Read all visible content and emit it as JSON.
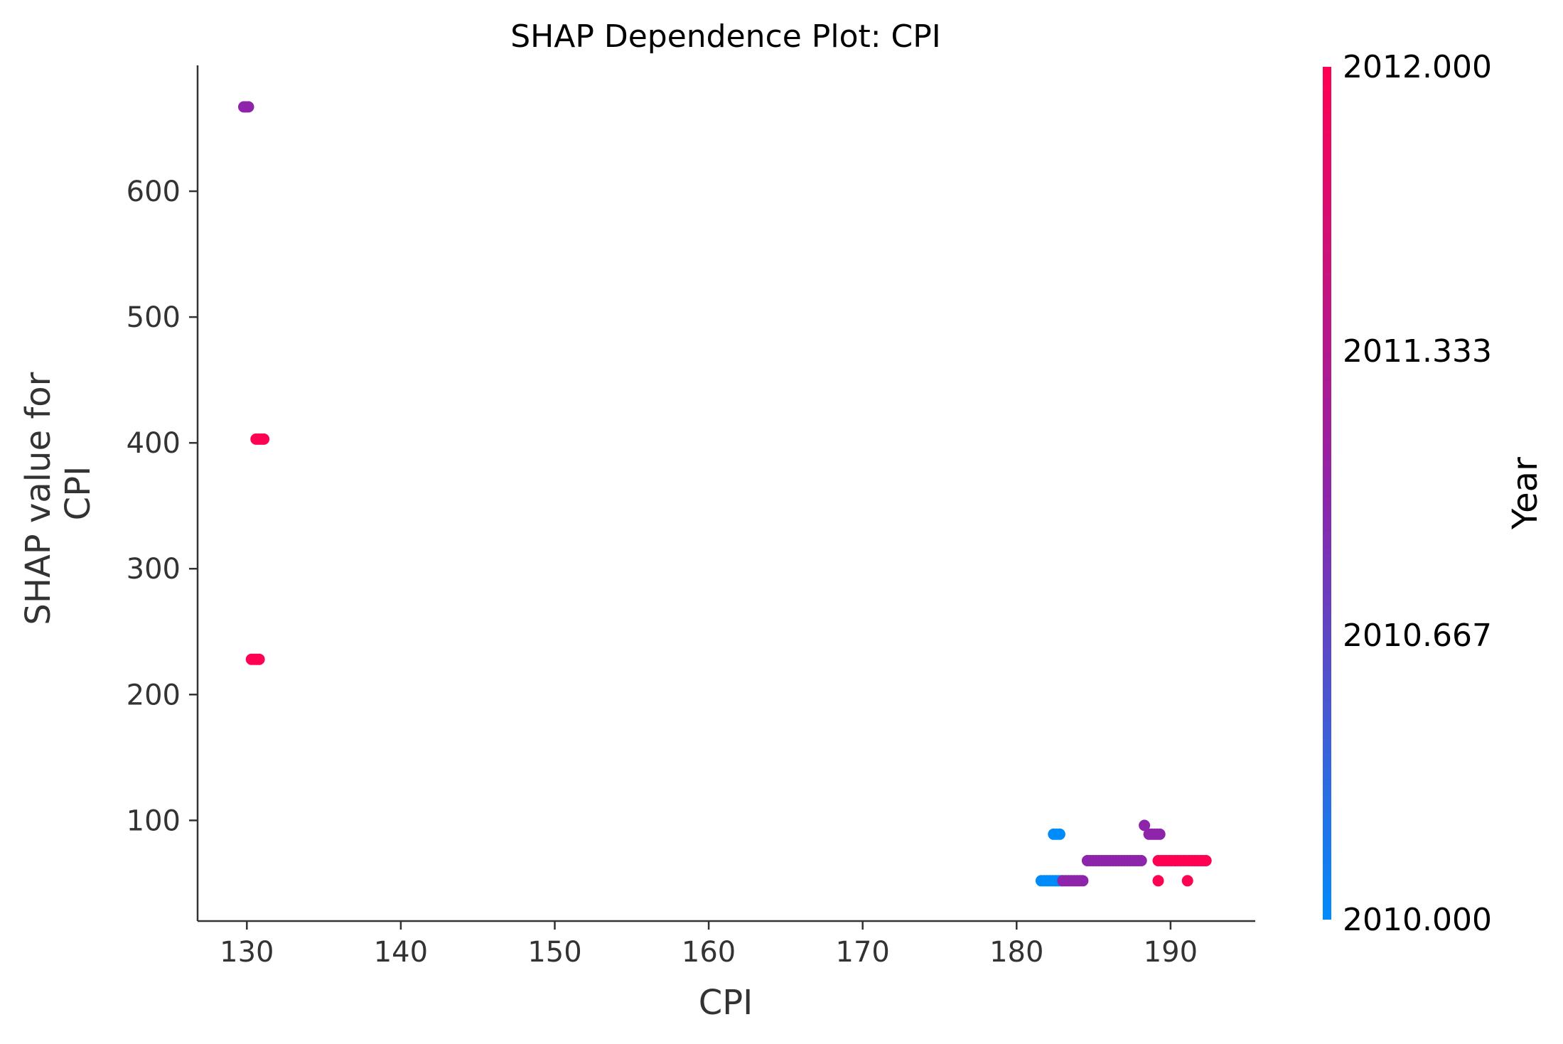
{
  "chart_data": {
    "type": "scatter",
    "title": "SHAP Dependence Plot: CPI",
    "xlabel": "CPI",
    "ylabel": "SHAP value for\nCPI",
    "xlim": [
      126.8,
      195.5
    ],
    "ylim": [
      20,
      700
    ],
    "xticks": [
      130,
      140,
      150,
      160,
      170,
      180,
      190
    ],
    "yticks": [
      100,
      200,
      300,
      400,
      500,
      600
    ],
    "grid": false,
    "colorbar": {
      "title": "Year",
      "range": [
        2010.0,
        2012.0
      ],
      "ticks": [
        "2010.000",
        "2010.667",
        "2011.333",
        "2012.000"
      ],
      "colors": [
        "#008bfb",
        "#8e24aa",
        "#ff0052"
      ]
    },
    "series": [
      {
        "color_value": 2010.0,
        "segments": [
          {
            "x0": 181.6,
            "x1": 182.9,
            "y": 52
          },
          {
            "x0": 182.4,
            "x1": 182.8,
            "y": 89
          }
        ]
      },
      {
        "color_value": 2011.0,
        "segments": [
          {
            "x0": 129.8,
            "x1": 130.1,
            "y": 667
          },
          {
            "x0": 183.0,
            "x1": 184.3,
            "y": 52
          },
          {
            "x0": 184.6,
            "x1": 188.1,
            "y": 68
          },
          {
            "x0": 188.3,
            "x1": 188.3,
            "y": 96
          },
          {
            "x0": 188.6,
            "x1": 189.3,
            "y": 89
          }
        ]
      },
      {
        "color_value": 2012.0,
        "segments": [
          {
            "x0": 130.6,
            "x1": 131.1,
            "y": 403
          },
          {
            "x0": 130.3,
            "x1": 130.8,
            "y": 228
          },
          {
            "x0": 189.2,
            "x1": 192.3,
            "y": 68
          },
          {
            "x0": 189.2,
            "x1": 189.2,
            "y": 52
          },
          {
            "x0": 191.1,
            "x1": 191.1,
            "y": 52
          }
        ]
      }
    ]
  }
}
